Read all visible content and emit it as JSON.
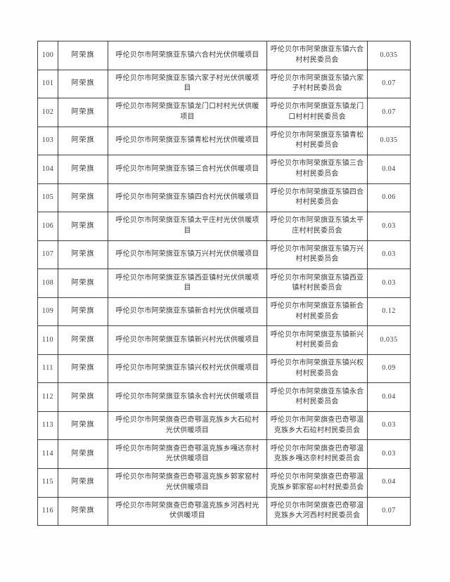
{
  "table": {
    "rows": [
      {
        "id": "100",
        "region": "阿荣旗",
        "project": "呼伦贝尔市阿荣旗亚东镇六合村光伏供暖项目",
        "org": "呼伦贝尔市阿荣旗亚东镇六合村村民委员会",
        "value": "0.035"
      },
      {
        "id": "101",
        "region": "阿荣旗",
        "project": "呼伦贝尔市阿荣旗亚东镇六家子村光伏供暖项目",
        "org": "呼伦贝尔市阿荣旗亚东镇六家子村村民委员会",
        "value": "0.07"
      },
      {
        "id": "102",
        "region": "阿荣旗",
        "project": "呼伦贝尔市阿荣旗亚东镇龙门口村村光伏供暖项目",
        "org": "呼伦贝尔市阿荣旗亚东镇龙门口村村村民委员会",
        "value": "0.07"
      },
      {
        "id": "103",
        "region": "阿荣旗",
        "project": "呼伦贝尔市阿荣旗亚东镇青松村光伏供暖项目",
        "org": "呼伦贝尔市阿荣旗亚东镇青松村村民委员会",
        "value": "0.035"
      },
      {
        "id": "104",
        "region": "阿荣旗",
        "project": "呼伦贝尔市阿荣旗亚东镇三合村光伏供暖项目",
        "org": "呼伦贝尔市阿荣旗亚东镇三合村村民委员会",
        "value": "0.04"
      },
      {
        "id": "105",
        "region": "阿荣旗",
        "project": "呼伦贝尔市阿荣旗亚东镇四合村光伏供暖项目",
        "org": "呼伦贝尔市阿荣旗亚东镇四合村村民委员会",
        "value": "0.06"
      },
      {
        "id": "106",
        "region": "阿荣旗",
        "project": "呼伦贝尔市阿荣旗亚东镇太平庄村光伏供暖项目",
        "org": "呼伦贝尔市阿荣旗亚东镇太平庄村村民委员会",
        "value": "0.03"
      },
      {
        "id": "107",
        "region": "阿荣旗",
        "project": "呼伦贝尔市阿荣旗亚东镇万兴村光伏供暖项目",
        "org": "呼伦贝尔市阿荣旗亚东镇万兴村村民委员会",
        "value": "0.03"
      },
      {
        "id": "108",
        "region": "阿荣旗",
        "project": "呼伦贝尔市阿荣旗亚东镇西亚镇村光伏供暖项目",
        "org": "呼伦贝尔市阿荣旗亚东镇西亚镇村村民委员会",
        "value": "0.03"
      },
      {
        "id": "109",
        "region": "阿荣旗",
        "project": "呼伦贝尔市阿荣旗亚东镇新合村光伏供暖项目",
        "org": "呼伦贝尔市阿荣旗亚东镇新合村村民委员会",
        "value": "0.12"
      },
      {
        "id": "110",
        "region": "阿荣旗",
        "project": "呼伦贝尔市阿荣旗亚东镇新兴村光伏供暖项目",
        "org": "呼伦贝尔市阿荣旗亚东镇新兴村村民委员会",
        "value": "0.035"
      },
      {
        "id": "111",
        "region": "阿荣旗",
        "project": "呼伦贝尔市阿荣旗亚东镇兴权村光伏供暖项目",
        "org": "呼伦贝尔市阿荣旗亚东镇兴权村村民委员会",
        "value": "0.09"
      },
      {
        "id": "112",
        "region": "阿荣旗",
        "project": "呼伦贝尔市阿荣旗亚东镇永合村光伏供暖项目",
        "org": "呼伦贝尔市阿荣旗亚东镇永合村村民委员会",
        "value": "0.04"
      },
      {
        "id": "113",
        "region": "阿荣旗",
        "project": "呼伦贝尔市阿荣旗查巴奇鄂温克族乡大石砬村光伏供暖项目",
        "org": "呼伦贝尔市阿荣旗查巴奇鄂温克族乡大石砬村村民委员会",
        "value": "0.03"
      },
      {
        "id": "114",
        "region": "阿荣旗",
        "project": "呼伦贝尔市阿荣旗查巴奇鄂温克族乡嘎达奈村光伏供暖项目",
        "org": "呼伦贝尔市阿荣旗查巴奇鄂温克族乡嘎达奈村村民委员会",
        "value": "0.03"
      },
      {
        "id": "115",
        "region": "阿荣旗",
        "project": "呼伦贝尔市阿荣旗查巴奇鄂温克族乡郭家窑村光伏供暖项目",
        "org": "呼伦贝尔市阿荣旗查巴奇鄂温克族乡郭家窑40村村民委员会",
        "value": "0.04"
      },
      {
        "id": "116",
        "region": "阿荣旗",
        "project": "呼伦贝尔市阿荣旗查巴奇鄂温克族乡河西村光伏供暖项目",
        "org": "呼伦贝尔市阿荣旗查巴奇鄂温克族乡大河西村村民委员会",
        "value": "0.07"
      }
    ]
  }
}
